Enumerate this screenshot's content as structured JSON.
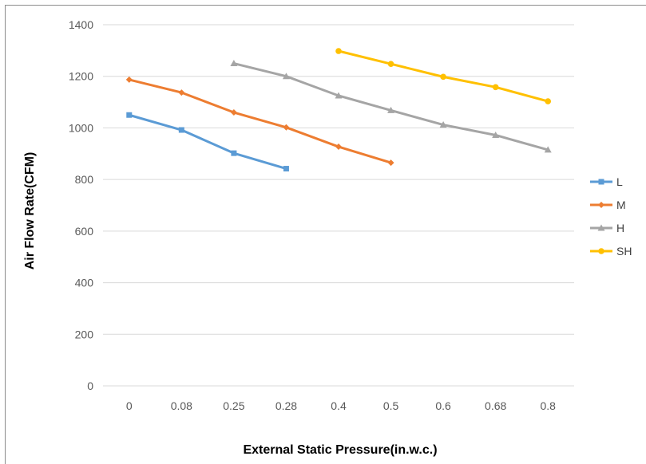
{
  "chart_data": {
    "type": "line",
    "title": "",
    "xlabel": "External Static Pressure(in.w.c.)",
    "ylabel": "Air Flow Rate(CFM)",
    "categories": [
      "0",
      "0.08",
      "0.25",
      "0.28",
      "0.4",
      "0.5",
      "0.6",
      "0.68",
      "0.8"
    ],
    "ylim": [
      0,
      1400
    ],
    "yticks": [
      0,
      200,
      400,
      600,
      800,
      1000,
      1200,
      1400
    ],
    "grid": true,
    "legend_position": "right",
    "series": [
      {
        "name": "L",
        "color": "#5b9bd5",
        "marker": "square",
        "values": [
          1050,
          992,
          902,
          842,
          null,
          null,
          null,
          null,
          null
        ]
      },
      {
        "name": "M",
        "color": "#ed7d31",
        "marker": "diamond",
        "values": [
          1187,
          1137,
          1060,
          1002,
          927,
          865,
          null,
          null,
          null
        ]
      },
      {
        "name": "H",
        "color": "#a5a5a5",
        "marker": "triangle",
        "values": [
          null,
          null,
          1250,
          1200,
          1125,
          1068,
          1012,
          972,
          915
        ]
      },
      {
        "name": "SH",
        "color": "#ffc000",
        "marker": "circle",
        "values": [
          null,
          null,
          null,
          null,
          1298,
          1248,
          1198,
          1158,
          1103
        ]
      }
    ]
  }
}
